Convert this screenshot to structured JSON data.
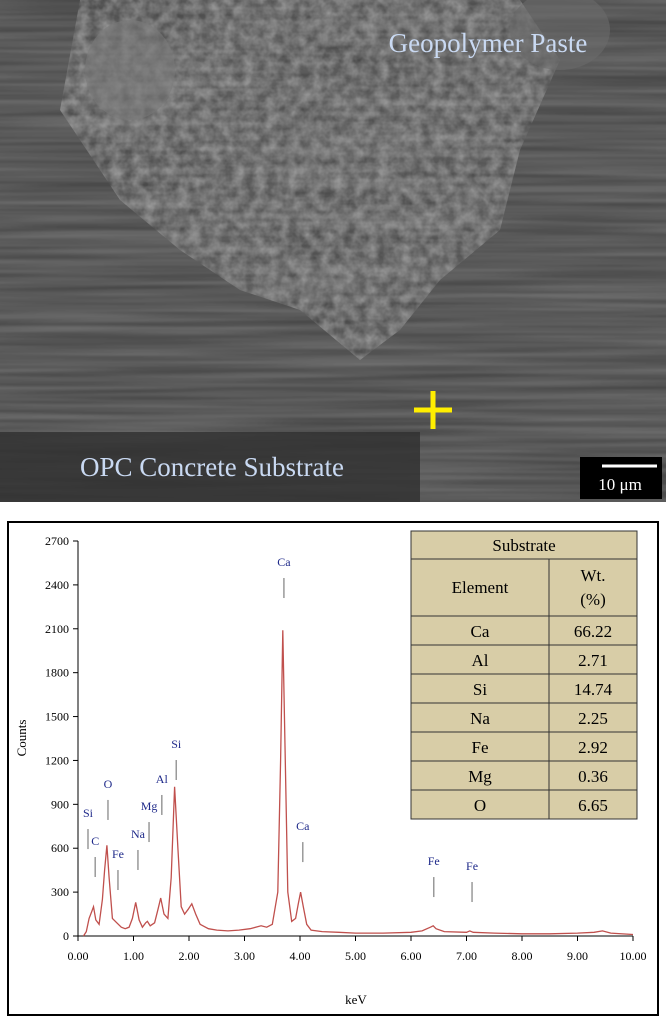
{
  "image": {
    "top_label": "Geopolymer Paste",
    "bottom_label": "OPC Concrete Substrate",
    "scale_bar": "10 μm"
  },
  "chart_data": {
    "type": "line",
    "xlabel": "keV",
    "ylabel": "Counts",
    "color": "#c0504d",
    "xlim": [
      0,
      10
    ],
    "ylim": [
      0,
      2700
    ],
    "xticks": [
      {
        "value": 0,
        "label": "0.00"
      },
      {
        "value": 1,
        "label": "1.00"
      },
      {
        "value": 2,
        "label": "2.00"
      },
      {
        "value": 3,
        "label": "3.00"
      },
      {
        "value": 4,
        "label": "4.00"
      },
      {
        "value": 5,
        "label": "5.00"
      },
      {
        "value": 6,
        "label": "6.00"
      },
      {
        "value": 7,
        "label": "7.00"
      },
      {
        "value": 8,
        "label": "8.00"
      },
      {
        "value": 9,
        "label": "9.00"
      },
      {
        "value": 10,
        "label": "10.00"
      }
    ],
    "yticks": [
      0,
      300,
      600,
      900,
      1200,
      1500,
      1800,
      2100,
      2400,
      2700
    ],
    "x": [
      0.1,
      0.15,
      0.2,
      0.25,
      0.28,
      0.32,
      0.38,
      0.44,
      0.48,
      0.52,
      0.56,
      0.62,
      0.7,
      0.78,
      0.85,
      0.92,
      0.98,
      1.04,
      1.1,
      1.16,
      1.22,
      1.25,
      1.3,
      1.38,
      1.44,
      1.49,
      1.55,
      1.62,
      1.68,
      1.74,
      1.8,
      1.86,
      1.92,
      1.98,
      2.05,
      2.12,
      2.2,
      2.35,
      2.5,
      2.7,
      2.9,
      3.1,
      3.3,
      3.4,
      3.5,
      3.6,
      3.65,
      3.69,
      3.73,
      3.78,
      3.85,
      3.92,
      3.97,
      4.01,
      4.06,
      4.12,
      4.2,
      4.4,
      4.7,
      5.0,
      5.5,
      6.0,
      6.2,
      6.35,
      6.4,
      6.45,
      6.6,
      7.0,
      7.06,
      7.12,
      7.5,
      8.0,
      8.5,
      9.0,
      9.3,
      9.45,
      9.6,
      10.0
    ],
    "values": [
      0,
      30,
      120,
      170,
      200,
      110,
      80,
      250,
      450,
      620,
      400,
      120,
      90,
      60,
      50,
      60,
      120,
      230,
      110,
      60,
      90,
      100,
      70,
      90,
      180,
      260,
      150,
      120,
      400,
      1020,
      600,
      200,
      150,
      180,
      220,
      150,
      80,
      50,
      40,
      35,
      40,
      50,
      70,
      60,
      80,
      300,
      1200,
      2090,
      1300,
      300,
      100,
      120,
      220,
      300,
      200,
      80,
      40,
      30,
      25,
      20,
      20,
      25,
      35,
      60,
      70,
      50,
      30,
      25,
      35,
      25,
      20,
      15,
      15,
      20,
      25,
      35,
      20,
      10
    ],
    "annotations": [
      {
        "text": "Si",
        "x": 0.18,
        "y": 813
      },
      {
        "text": "C",
        "x": 0.31,
        "y": 622
      },
      {
        "text": "O",
        "x": 0.54,
        "y": 1012
      },
      {
        "text": "Fe",
        "x": 0.72,
        "y": 533
      },
      {
        "text": "Na",
        "x": 1.08,
        "y": 670
      },
      {
        "text": "Mg",
        "x": 1.28,
        "y": 861
      },
      {
        "text": "Al",
        "x": 1.51,
        "y": 1046
      },
      {
        "text": "Si",
        "x": 1.77,
        "y": 1285
      },
      {
        "text": "Ca",
        "x": 3.71,
        "y": 2529
      },
      {
        "text": "Ca",
        "x": 4.05,
        "y": 724
      },
      {
        "text": "Fe",
        "x": 6.41,
        "y": 485
      },
      {
        "text": "Fe",
        "x": 7.1,
        "y": 451
      }
    ],
    "table": {
      "title": "Substrate",
      "header": [
        "Element",
        "Wt.",
        "(%)"
      ],
      "rows": [
        [
          "Ca",
          "66.22"
        ],
        [
          "Al",
          "2.71"
        ],
        [
          "Si",
          "14.74"
        ],
        [
          "Na",
          "2.25"
        ],
        [
          "Fe",
          "2.92"
        ],
        [
          "Mg",
          "0.36"
        ],
        [
          "O",
          "6.65"
        ]
      ]
    }
  }
}
